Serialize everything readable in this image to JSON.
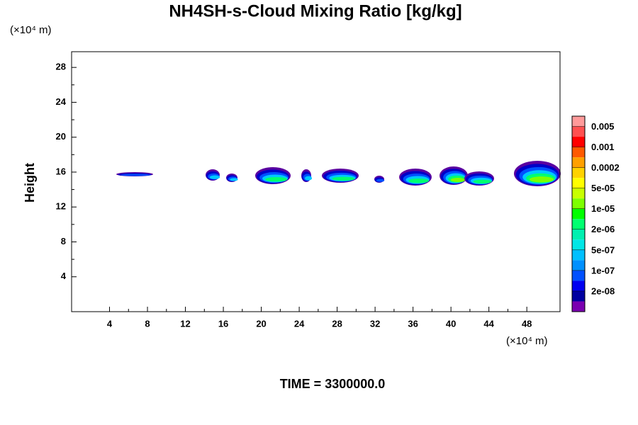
{
  "chart_data": {
    "type": "contour",
    "title": "NH4SH-s-Cloud Mixing Ratio [kg/kg]",
    "x_unit": "(×10⁴ m)",
    "y_unit": "(×10⁴ m)",
    "y_label": "Height",
    "footer": "TIME = 3300000.0",
    "xlim": [
      0,
      51.5
    ],
    "xticks": [
      4,
      8,
      12,
      16,
      20,
      24,
      28,
      32,
      36,
      40,
      44,
      48
    ],
    "ylim": [
      0,
      29.8
    ],
    "yticks": [
      4,
      8,
      12,
      16,
      20,
      24,
      28
    ],
    "colorbar": {
      "colors": [
        "#ff9a9a",
        "#ff5050",
        "#ff0000",
        "#ff5a00",
        "#ffa000",
        "#ffd200",
        "#ffff00",
        "#c8ff00",
        "#7dff00",
        "#00ff00",
        "#00ff70",
        "#00f0b0",
        "#00e6e6",
        "#00c0ff",
        "#0090ff",
        "#0050ff",
        "#0000f0",
        "#0000a0"
      ],
      "bottom_color": "#7a00b0",
      "ticks": [
        0.005,
        0.001,
        0.0002,
        {
          "value": 5e-05,
          "label": "5e-05"
        },
        {
          "value": 1e-05,
          "label": "1e-05"
        },
        {
          "value": 2e-06,
          "label": "2e-06"
        },
        {
          "value": 5e-07,
          "label": "5e-07"
        },
        {
          "value": 1e-07,
          "label": "1e-07"
        },
        {
          "value": 2e-08,
          "label": "2e-08"
        }
      ]
    }
  }
}
